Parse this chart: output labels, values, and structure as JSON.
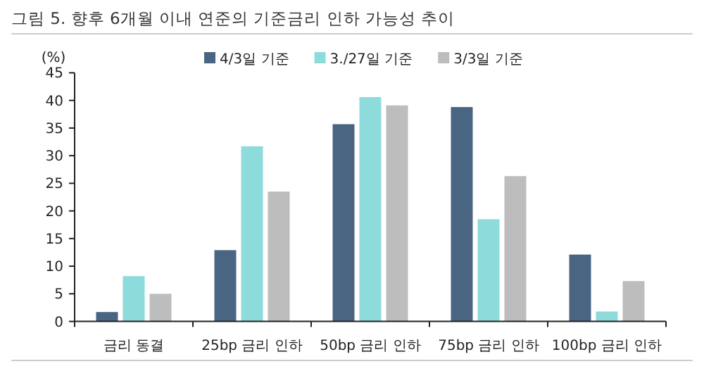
{
  "chart_data": {
    "type": "bar",
    "title": "그림 5. 향후 6개월 이내 연준의 기준금리 인하 가능성 추이",
    "ylabel": "(%)",
    "categories": [
      "금리 동결",
      "25bp 금리 인하",
      "50bp 금리 인하",
      "75bp 금리 인하",
      "100bp 금리 인하"
    ],
    "series": [
      {
        "name": "4/3일 기준",
        "color": "#4a6582",
        "values": [
          1.7,
          12.9,
          35.7,
          38.8,
          12.1
        ]
      },
      {
        "name": "3./27일 기준",
        "color": "#8ddbdb",
        "values": [
          8.2,
          31.7,
          40.6,
          18.5,
          1.8
        ]
      },
      {
        "name": "3/3일 기준",
        "color": "#bdbdbd",
        "values": [
          5.0,
          23.5,
          39.1,
          26.3,
          7.3
        ]
      }
    ],
    "ylim": [
      0,
      45
    ],
    "yticks": [
      0,
      5,
      10,
      15,
      20,
      25,
      30,
      35,
      40,
      45
    ],
    "grid": false,
    "legend": "top"
  }
}
